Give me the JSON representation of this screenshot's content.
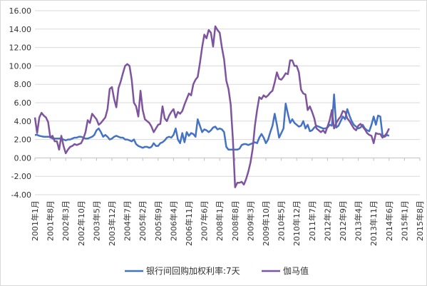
{
  "chart_data": {
    "type": "line",
    "title": "",
    "xlabel": "",
    "ylabel": "",
    "ylim": [
      -4,
      16
    ],
    "y_ticks": [
      "-4.00",
      "-2.00",
      "0.00",
      "2.00",
      "4.00",
      "6.00",
      "8.00",
      "10.00",
      "12.00",
      "14.00",
      "16.00"
    ],
    "x_tick_labels": [
      "2001年1月",
      "2001年8月",
      "2002年3月",
      "2002年10月",
      "2003年5月",
      "2003年12月",
      "2004年7月",
      "2005年2月",
      "2005年9月",
      "2006年4月",
      "2006年11月",
      "2007年6月",
      "2008年1月",
      "2008年8月",
      "2009年3月",
      "2009年10月",
      "2010年5月",
      "2010年12月",
      "2011年7月",
      "2012年2月",
      "2012年9月",
      "2013年4月",
      "2013年11月",
      "2014年6月",
      "2015年1月",
      "2015年8月"
    ],
    "grid": true,
    "legend_position": "bottom",
    "series": [
      {
        "name": "银行间回购加权利率:7天",
        "color": "#4472C4",
        "points": [
          [
            0,
            2.5
          ],
          [
            1,
            2.5
          ],
          [
            2,
            2.4
          ],
          [
            3,
            2.35
          ],
          [
            4,
            2.3
          ],
          [
            5,
            2.3
          ],
          [
            6,
            2.3
          ],
          [
            7,
            2.3
          ],
          [
            8,
            2.1
          ],
          [
            9,
            2.1
          ],
          [
            10,
            2.1
          ],
          [
            11,
            2.1
          ],
          [
            12,
            2.1
          ],
          [
            13,
            2.0
          ],
          [
            14,
            1.9
          ],
          [
            15,
            2.0
          ],
          [
            16,
            2.0
          ],
          [
            17,
            2.1
          ],
          [
            18,
            2.2
          ],
          [
            19,
            2.2
          ],
          [
            20,
            2.3
          ],
          [
            21,
            2.3
          ],
          [
            22,
            2.2
          ],
          [
            23,
            2.1
          ],
          [
            24,
            2.1
          ],
          [
            25,
            2.2
          ],
          [
            26,
            2.3
          ],
          [
            27,
            2.5
          ],
          [
            28,
            3.0
          ],
          [
            29,
            3.2
          ],
          [
            30,
            2.8
          ],
          [
            31,
            2.3
          ],
          [
            32,
            2.5
          ],
          [
            33,
            2.3
          ],
          [
            34,
            2.0
          ],
          [
            35,
            2.1
          ],
          [
            36,
            2.3
          ],
          [
            37,
            2.4
          ],
          [
            38,
            2.3
          ],
          [
            39,
            2.2
          ],
          [
            40,
            2.2
          ],
          [
            41,
            2.0
          ],
          [
            42,
            2.0
          ],
          [
            43,
            1.9
          ],
          [
            44,
            1.8
          ],
          [
            45,
            2.0
          ],
          [
            46,
            1.5
          ],
          [
            47,
            1.3
          ],
          [
            48,
            1.2
          ],
          [
            49,
            1.1
          ],
          [
            50,
            1.2
          ],
          [
            51,
            1.2
          ],
          [
            52,
            1.1
          ],
          [
            53,
            1.2
          ],
          [
            54,
            1.6
          ],
          [
            55,
            1.3
          ],
          [
            56,
            1.3
          ],
          [
            57,
            1.6
          ],
          [
            58,
            1.7
          ],
          [
            59,
            1.9
          ],
          [
            60,
            2.2
          ],
          [
            61,
            2.3
          ],
          [
            62,
            2.2
          ],
          [
            63,
            2.5
          ],
          [
            64,
            3.2
          ],
          [
            65,
            2.0
          ],
          [
            66,
            1.6
          ],
          [
            67,
            2.7
          ],
          [
            68,
            1.7
          ],
          [
            69,
            2.8
          ],
          [
            70,
            2.4
          ],
          [
            71,
            2.7
          ],
          [
            72,
            2.6
          ],
          [
            73,
            2.3
          ],
          [
            74,
            4.2
          ],
          [
            75,
            3.5
          ],
          [
            76,
            2.8
          ],
          [
            77,
            3.1
          ],
          [
            78,
            3.0
          ],
          [
            79,
            2.8
          ],
          [
            80,
            3.0
          ],
          [
            81,
            3.3
          ],
          [
            82,
            3.4
          ],
          [
            83,
            3.1
          ],
          [
            84,
            3.2
          ],
          [
            85,
            3.1
          ],
          [
            86,
            2.8
          ],
          [
            87,
            1.2
          ],
          [
            88,
            0.9
          ],
          [
            89,
            0.9
          ],
          [
            90,
            0.9
          ],
          [
            91,
            0.9
          ],
          [
            92,
            0.9
          ],
          [
            93,
            1.0
          ],
          [
            94,
            1.4
          ],
          [
            95,
            1.5
          ],
          [
            96,
            1.5
          ],
          [
            97,
            1.4
          ],
          [
            98,
            1.5
          ],
          [
            99,
            1.6
          ],
          [
            100,
            1.7
          ],
          [
            101,
            1.6
          ],
          [
            102,
            2.2
          ],
          [
            103,
            2.6
          ],
          [
            104,
            2.2
          ],
          [
            105,
            1.6
          ],
          [
            106,
            2.0
          ],
          [
            107,
            2.8
          ],
          [
            108,
            3.5
          ],
          [
            109,
            4.8
          ],
          [
            110,
            3.6
          ],
          [
            111,
            2.2
          ],
          [
            112,
            2.7
          ],
          [
            113,
            3.2
          ],
          [
            114,
            5.9
          ],
          [
            115,
            4.8
          ],
          [
            116,
            3.8
          ],
          [
            117,
            4.2
          ],
          [
            118,
            3.8
          ],
          [
            119,
            3.6
          ],
          [
            120,
            3.4
          ],
          [
            121,
            3.5
          ],
          [
            122,
            4.0
          ],
          [
            123,
            3.2
          ],
          [
            124,
            3.6
          ],
          [
            125,
            2.9
          ],
          [
            126,
            3.0
          ],
          [
            127,
            3.3
          ],
          [
            128,
            3.5
          ],
          [
            129,
            3.4
          ],
          [
            130,
            3.3
          ],
          [
            131,
            3.2
          ],
          [
            132,
            3.2
          ],
          [
            133,
            3.3
          ],
          [
            134,
            3.6
          ],
          [
            135,
            3.5
          ],
          [
            136,
            6.9
          ],
          [
            137,
            3.3
          ],
          [
            138,
            3.5
          ],
          [
            139,
            4.0
          ],
          [
            140,
            4.5
          ],
          [
            141,
            4.2
          ],
          [
            142,
            5.3
          ],
          [
            143,
            4.6
          ],
          [
            144,
            4.0
          ],
          [
            145,
            3.6
          ],
          [
            146,
            3.4
          ],
          [
            147,
            3.2
          ],
          [
            148,
            3.3
          ],
          [
            149,
            3.6
          ],
          [
            150,
            3.2
          ],
          [
            151,
            3.0
          ],
          [
            152,
            2.9
          ],
          [
            153,
            3.6
          ],
          [
            154,
            4.5
          ],
          [
            155,
            3.6
          ],
          [
            156,
            4.6
          ],
          [
            157,
            4.5
          ],
          [
            158,
            2.5
          ],
          [
            159,
            2.3
          ],
          [
            160,
            2.5
          ],
          [
            161,
            2.4
          ]
        ]
      },
      {
        "name": "伽马值",
        "color": "#7E549F",
        "points": [
          [
            0,
            4.4
          ],
          [
            1,
            2.7
          ],
          [
            2,
            4.4
          ],
          [
            3,
            4.9
          ],
          [
            4,
            4.6
          ],
          [
            5,
            4.4
          ],
          [
            6,
            3.9
          ],
          [
            7,
            2.2
          ],
          [
            8,
            2.4
          ],
          [
            9,
            1.8
          ],
          [
            10,
            1.8
          ],
          [
            11,
            0.9
          ],
          [
            12,
            2.4
          ],
          [
            13,
            1.3
          ],
          [
            14,
            0.5
          ],
          [
            15,
            0.9
          ],
          [
            16,
            1.2
          ],
          [
            17,
            1.3
          ],
          [
            18,
            1.5
          ],
          [
            19,
            1.4
          ],
          [
            20,
            1.5
          ],
          [
            21,
            1.6
          ],
          [
            22,
            2.1
          ],
          [
            23,
            2.8
          ],
          [
            24,
            4.1
          ],
          [
            25,
            3.8
          ],
          [
            26,
            4.8
          ],
          [
            27,
            4.5
          ],
          [
            28,
            4.2
          ],
          [
            29,
            3.6
          ],
          [
            30,
            3.8
          ],
          [
            31,
            4.1
          ],
          [
            32,
            4.4
          ],
          [
            33,
            5.3
          ],
          [
            34,
            7.5
          ],
          [
            35,
            7.7
          ],
          [
            36,
            6.4
          ],
          [
            37,
            5.5
          ],
          [
            38,
            7.6
          ],
          [
            39,
            8.3
          ],
          [
            40,
            9.2
          ],
          [
            41,
            10.0
          ],
          [
            42,
            10.2
          ],
          [
            43,
            10.0
          ],
          [
            44,
            8.5
          ],
          [
            45,
            6.0
          ],
          [
            46,
            5.6
          ],
          [
            47,
            4.5
          ],
          [
            48,
            7.3
          ],
          [
            49,
            5.2
          ],
          [
            50,
            4.2
          ],
          [
            51,
            4.0
          ],
          [
            52,
            3.8
          ],
          [
            53,
            3.4
          ],
          [
            54,
            2.8
          ],
          [
            55,
            3.2
          ],
          [
            56,
            3.6
          ],
          [
            57,
            3.7
          ],
          [
            58,
            5.6
          ],
          [
            59,
            4.3
          ],
          [
            60,
            4.0
          ],
          [
            61,
            4.6
          ],
          [
            62,
            5.0
          ],
          [
            63,
            5.3
          ],
          [
            64,
            4.4
          ],
          [
            65,
            5.0
          ],
          [
            66,
            4.8
          ],
          [
            67,
            5.1
          ],
          [
            68,
            5.8
          ],
          [
            69,
            6.4
          ],
          [
            70,
            7.0
          ],
          [
            71,
            6.8
          ],
          [
            72,
            8.0
          ],
          [
            73,
            8.5
          ],
          [
            74,
            8.8
          ],
          [
            75,
            10.3
          ],
          [
            76,
            12.0
          ],
          [
            77,
            13.4
          ],
          [
            78,
            13.0
          ],
          [
            79,
            13.9
          ],
          [
            80,
            13.6
          ],
          [
            81,
            12.1
          ],
          [
            82,
            14.3
          ],
          [
            83,
            13.9
          ],
          [
            84,
            13.6
          ],
          [
            85,
            12.0
          ],
          [
            86,
            10.7
          ],
          [
            87,
            8.4
          ],
          [
            88,
            7.5
          ],
          [
            89,
            5.8
          ],
          [
            90,
            2.0
          ],
          [
            91,
            -3.2
          ],
          [
            92,
            -2.7
          ],
          [
            93,
            -2.7
          ],
          [
            94,
            -2.6
          ],
          [
            95,
            -2.9
          ],
          [
            96,
            -2.3
          ],
          [
            97,
            -1.5
          ],
          [
            98,
            -0.5
          ],
          [
            99,
            1.0
          ],
          [
            100,
            3.5
          ],
          [
            101,
            5.2
          ],
          [
            102,
            6.6
          ],
          [
            103,
            6.4
          ],
          [
            104,
            6.8
          ],
          [
            105,
            6.6
          ],
          [
            106,
            6.8
          ],
          [
            107,
            7.1
          ],
          [
            108,
            7.3
          ],
          [
            109,
            8.2
          ],
          [
            110,
            9.3
          ],
          [
            111,
            8.6
          ],
          [
            112,
            8.5
          ],
          [
            113,
            8.8
          ],
          [
            114,
            9.2
          ],
          [
            115,
            9.1
          ],
          [
            116,
            10.6
          ],
          [
            117,
            10.6
          ],
          [
            118,
            10.0
          ],
          [
            119,
            10.0
          ],
          [
            120,
            9.3
          ],
          [
            121,
            7.4
          ],
          [
            122,
            7.0
          ],
          [
            123,
            6.9
          ],
          [
            124,
            5.2
          ],
          [
            125,
            5.6
          ],
          [
            126,
            5.0
          ],
          [
            127,
            4.3
          ],
          [
            128,
            3.2
          ],
          [
            129,
            3.0
          ],
          [
            130,
            2.8
          ],
          [
            131,
            3.0
          ],
          [
            132,
            2.7
          ],
          [
            133,
            3.4
          ],
          [
            134,
            4.1
          ],
          [
            135,
            5.2
          ],
          [
            136,
            3.2
          ],
          [
            137,
            3.8
          ],
          [
            138,
            4.2
          ],
          [
            139,
            4.5
          ],
          [
            140,
            5.1
          ],
          [
            141,
            5.0
          ],
          [
            142,
            4.3
          ],
          [
            143,
            4.0
          ],
          [
            144,
            3.6
          ],
          [
            145,
            3.2
          ],
          [
            146,
            3.0
          ],
          [
            147,
            3.5
          ],
          [
            148,
            3.7
          ],
          [
            149,
            3.4
          ],
          [
            150,
            3.1
          ],
          [
            151,
            2.7
          ],
          [
            152,
            2.5
          ],
          [
            153,
            2.4
          ],
          [
            154,
            1.6
          ],
          [
            155,
            2.7
          ],
          [
            156,
            2.6
          ],
          [
            157,
            2.6
          ],
          [
            158,
            2.2
          ],
          [
            159,
            2.4
          ],
          [
            160,
            2.7
          ],
          [
            161,
            3.2
          ]
        ]
      }
    ]
  }
}
